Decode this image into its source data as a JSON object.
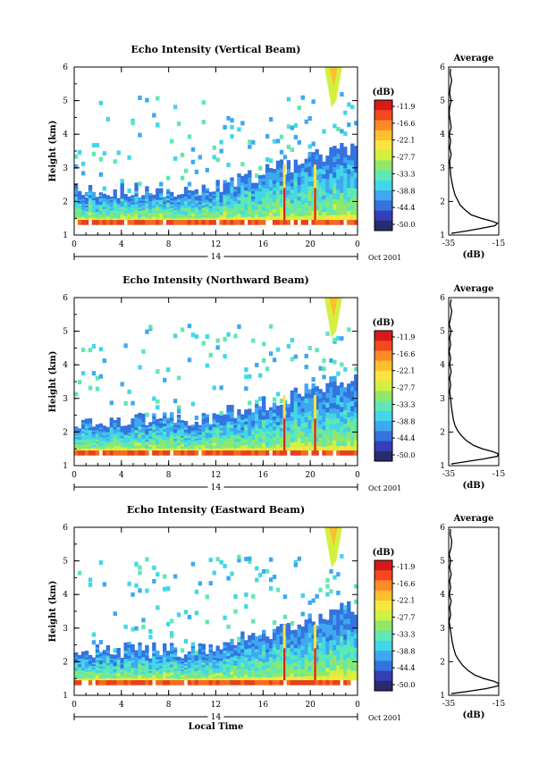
{
  "chart_data": [
    {
      "type": "heatmap",
      "title": "Echo Intensity (Vertical Beam)",
      "ylabel": "Height (km)",
      "ylim": [
        1,
        6
      ],
      "xlim": [
        0,
        24
      ],
      "x_ticks": [
        "0",
        "4",
        "8",
        "12",
        "16",
        "20",
        "0"
      ],
      "y_ticks": [
        "1",
        "2",
        "3",
        "4",
        "5",
        "6"
      ],
      "date_marker": "14",
      "date_label": "Oct 2001",
      "colorbar": {
        "unit": "(dB)",
        "ticks": [
          "-11.9",
          "-16.6",
          "-22.1",
          "-27.7",
          "-33.3",
          "-38.8",
          "-44.4",
          "-50.0"
        ],
        "range": [
          -50.0,
          -11.9
        ]
      },
      "profile": {
        "title": "Average",
        "xlabel": "(dB)",
        "xlim": [
          -35,
          -15
        ],
        "x_ticks": [
          "-35",
          "-15"
        ],
        "ylim": [
          1,
          6
        ],
        "y_ticks": [
          "1",
          "2",
          "3",
          "4",
          "5",
          "6"
        ],
        "height": [
          1.05,
          1.12,
          1.2,
          1.28,
          1.35,
          1.42,
          1.5,
          1.6,
          1.75,
          1.9,
          2.05,
          2.2,
          2.4,
          2.6,
          2.8,
          3.0,
          3.2,
          3.4,
          3.6,
          3.8,
          4.0,
          4.2,
          4.4,
          4.6,
          4.8,
          5.0,
          5.2,
          5.4,
          5.6,
          5.8,
          5.95
        ],
        "db": [
          -34,
          -28,
          -22,
          -16.5,
          -15.5,
          -18,
          -22,
          -26,
          -28.5,
          -30.5,
          -31.5,
          -32.5,
          -33.2,
          -33.8,
          -34.2,
          -34.4,
          -34.6,
          -34.0,
          -34.6,
          -34.2,
          -34.8,
          -34.0,
          -34.4,
          -34.8,
          -34.6,
          -34.0,
          -34.6,
          -34.4,
          -33.8,
          -34.4,
          -34.2
        ]
      }
    },
    {
      "type": "heatmap",
      "title": "Echo Intensity (Northward Beam)",
      "ylabel": "Height (km)",
      "ylim": [
        1,
        6
      ],
      "xlim": [
        0,
        24
      ],
      "x_ticks": [
        "0",
        "4",
        "8",
        "12",
        "16",
        "20",
        "0"
      ],
      "y_ticks": [
        "1",
        "2",
        "3",
        "4",
        "5",
        "6"
      ],
      "date_marker": "14",
      "date_label": "Oct 2001",
      "colorbar": {
        "unit": "(dB)",
        "ticks": [
          "-11.9",
          "-16.6",
          "-22.1",
          "-27.7",
          "-33.3",
          "-38.8",
          "-44.4",
          "-50.0"
        ],
        "range": [
          -50.0,
          -11.9
        ]
      },
      "profile": {
        "title": "Average",
        "xlabel": "(dB)",
        "xlim": [
          -35,
          -15
        ],
        "x_ticks": [
          "-35",
          "-15"
        ],
        "ylim": [
          1,
          6
        ],
        "y_ticks": [
          "1",
          "2",
          "3",
          "4",
          "5",
          "6"
        ],
        "height": [
          1.05,
          1.12,
          1.2,
          1.28,
          1.35,
          1.42,
          1.5,
          1.6,
          1.75,
          1.9,
          2.05,
          2.2,
          2.4,
          2.6,
          2.8,
          3.0,
          3.2,
          3.4,
          3.6,
          3.8,
          4.0,
          4.2,
          4.4,
          4.6,
          4.8,
          5.0,
          5.2,
          5.4,
          5.6,
          5.8,
          5.95
        ],
        "db": [
          -34,
          -28,
          -21,
          -15.5,
          -15.2,
          -17.5,
          -21.5,
          -25,
          -28,
          -30,
          -31.5,
          -32.5,
          -33.2,
          -33.6,
          -34.0,
          -34.2,
          -34.6,
          -34.2,
          -34.6,
          -34.0,
          -34.6,
          -34.2,
          -34.8,
          -34.2,
          -34.6,
          -34.0,
          -34.8,
          -34.2,
          -33.8,
          -34.4,
          -34.0
        ]
      }
    },
    {
      "type": "heatmap",
      "title": "Echo Intensity (Eastward Beam)",
      "xlabel": "Local Time",
      "ylabel": "Height (km)",
      "ylim": [
        1,
        6
      ],
      "xlim": [
        0,
        24
      ],
      "x_ticks": [
        "0",
        "4",
        "8",
        "12",
        "16",
        "20",
        "0"
      ],
      "y_ticks": [
        "1",
        "2",
        "3",
        "4",
        "5",
        "6"
      ],
      "date_marker": "14",
      "date_label": "Oct 2001",
      "colorbar": {
        "unit": "(dB)",
        "ticks": [
          "-11.9",
          "-16.6",
          "-22.1",
          "-27.7",
          "-33.3",
          "-38.8",
          "-44.4",
          "-50.0"
        ],
        "range": [
          -50.0,
          -11.9
        ]
      },
      "profile": {
        "title": "Average",
        "xlabel": "(dB)",
        "xlim": [
          -35,
          -15
        ],
        "x_ticks": [
          "-35",
          "-15"
        ],
        "ylim": [
          1,
          6
        ],
        "y_ticks": [
          "1",
          "2",
          "3",
          "4",
          "5",
          "6"
        ],
        "height": [
          1.05,
          1.12,
          1.2,
          1.28,
          1.35,
          1.42,
          1.5,
          1.6,
          1.75,
          1.9,
          2.05,
          2.2,
          2.4,
          2.6,
          2.8,
          3.0,
          3.2,
          3.4,
          3.6,
          3.8,
          4.0,
          4.2,
          4.4,
          4.6,
          4.8,
          5.0,
          5.2,
          5.4,
          5.6,
          5.8,
          5.95
        ],
        "db": [
          -34,
          -27,
          -20,
          -15.2,
          -15.0,
          -17,
          -21,
          -24.5,
          -27.5,
          -29.5,
          -31,
          -32.2,
          -33.0,
          -33.6,
          -34.0,
          -34.4,
          -34.8,
          -34.2,
          -34.6,
          -34.0,
          -34.8,
          -34.2,
          -34.6,
          -34.0,
          -34.6,
          -34.2,
          -34.8,
          -34.0,
          -33.8,
          -34.4,
          -34.2
        ]
      }
    }
  ]
}
